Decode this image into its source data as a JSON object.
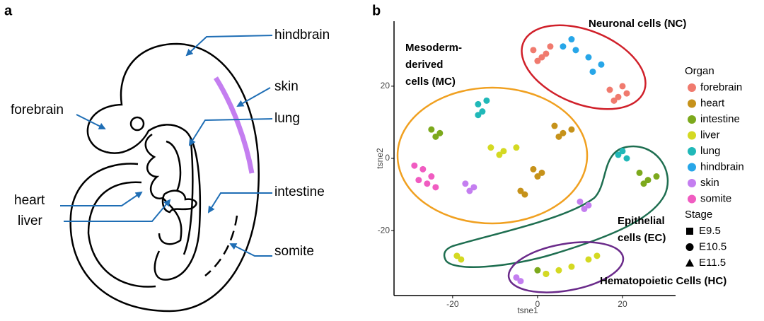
{
  "diagram": {
    "panel_label": "a",
    "labels": [
      "hindbrain",
      "skin",
      "forebrain",
      "lung",
      "heart",
      "liver",
      "intestine",
      "somite"
    ]
  },
  "chart_data": {
    "type": "scatter",
    "panel_label": "b",
    "x_label": "tsne1",
    "y_label": "tsne2",
    "xlim": [
      -33.8,
      32.5
    ],
    "ylim": [
      -38,
      38
    ],
    "xticks": [
      -20,
      0,
      20
    ],
    "yticks": [
      -20,
      0,
      20
    ],
    "legend_title": "Organ",
    "series": [
      {
        "name": "forebrain",
        "color": "#f07a6e",
        "x": [
          -1,
          1,
          3,
          0,
          2,
          17,
          19,
          21,
          18,
          20
        ],
        "y": [
          30,
          28,
          31,
          27,
          29,
          19,
          17,
          18,
          16,
          20
        ]
      },
      {
        "name": "heart",
        "color": "#c6921a",
        "x": [
          4,
          6,
          8,
          5,
          -1,
          1,
          0,
          -4,
          -3
        ],
        "y": [
          9,
          7,
          8,
          6,
          -3,
          -4,
          -5,
          -9,
          -10
        ]
      },
      {
        "name": "intestine",
        "color": "#7ca91c",
        "x": [
          -25,
          -23,
          -24,
          24,
          26,
          28,
          25,
          0,
          2
        ],
        "y": [
          8,
          7,
          6,
          -4,
          -6,
          -5,
          -7,
          -31,
          -32
        ]
      },
      {
        "name": "liver",
        "color": "#d4d922",
        "x": [
          -11,
          -8,
          -5,
          -9,
          -19,
          -18,
          2,
          5,
          8,
          12,
          14
        ],
        "y": [
          3,
          2,
          3,
          1,
          -27,
          -28,
          -32,
          -31,
          -30,
          -28,
          -27
        ]
      },
      {
        "name": "lung",
        "color": "#20b8b8",
        "x": [
          -14,
          -12,
          -13,
          -14,
          19,
          21,
          20
        ],
        "y": [
          15,
          16,
          13,
          12,
          1,
          0,
          2
        ]
      },
      {
        "name": "hindbrain",
        "color": "#27a6e8",
        "x": [
          6,
          9,
          12,
          15,
          8,
          13
        ],
        "y": [
          31,
          30,
          28,
          26,
          33,
          24
        ]
      },
      {
        "name": "skin",
        "color": "#c47ef0",
        "x": [
          -17,
          -15,
          -16,
          10,
          12,
          11,
          -5,
          -4
        ],
        "y": [
          -7,
          -8,
          -9,
          -12,
          -13,
          -14,
          -33,
          -34
        ]
      },
      {
        "name": "somite",
        "color": "#f05cc1",
        "x": [
          -29,
          -27,
          -25,
          -28,
          -26,
          -24
        ],
        "y": [
          -2,
          -3,
          -5,
          -6,
          -7,
          -8
        ]
      }
    ],
    "stage_title": "Stage",
    "stages": [
      {
        "name": "E9.5",
        "marker": "square"
      },
      {
        "name": "E10.5",
        "marker": "circle"
      },
      {
        "name": "E11.5",
        "marker": "triangle"
      }
    ],
    "annotations": [
      {
        "lines": [
          "Neuronal cells (NC)"
        ]
      },
      {
        "lines": [
          "Mesoderm-",
          "derived",
          "cells (MC)"
        ]
      },
      {
        "lines": [
          "Epithelial",
          "cells (EC)"
        ]
      },
      {
        "lines": [
          "Hematopoietic Cells (HC)"
        ]
      }
    ]
  }
}
